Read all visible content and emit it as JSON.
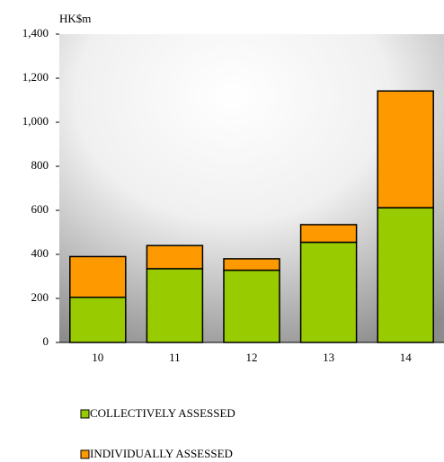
{
  "chart_data": {
    "type": "bar",
    "stacked": true,
    "y_label": "HK$m",
    "categories": [
      "10",
      "11",
      "12",
      "13",
      "14"
    ],
    "series": [
      {
        "name": "COLLECTIVELY ASSESSED",
        "color": "#99cc00",
        "values": [
          205,
          335,
          328,
          455,
          612
        ]
      },
      {
        "name": "INDIVIDUALLY ASSESSED",
        "color": "#ff9900",
        "values": [
          185,
          105,
          52,
          80,
          530
        ]
      }
    ],
    "ylim": [
      0,
      1400
    ],
    "yticks": [
      0,
      200,
      400,
      600,
      800,
      {
        "value": 1000,
        "label": "1,000"
      },
      {
        "value": 1200,
        "label": "1,200"
      },
      {
        "value": 1400,
        "label": "1,400"
      }
    ]
  }
}
